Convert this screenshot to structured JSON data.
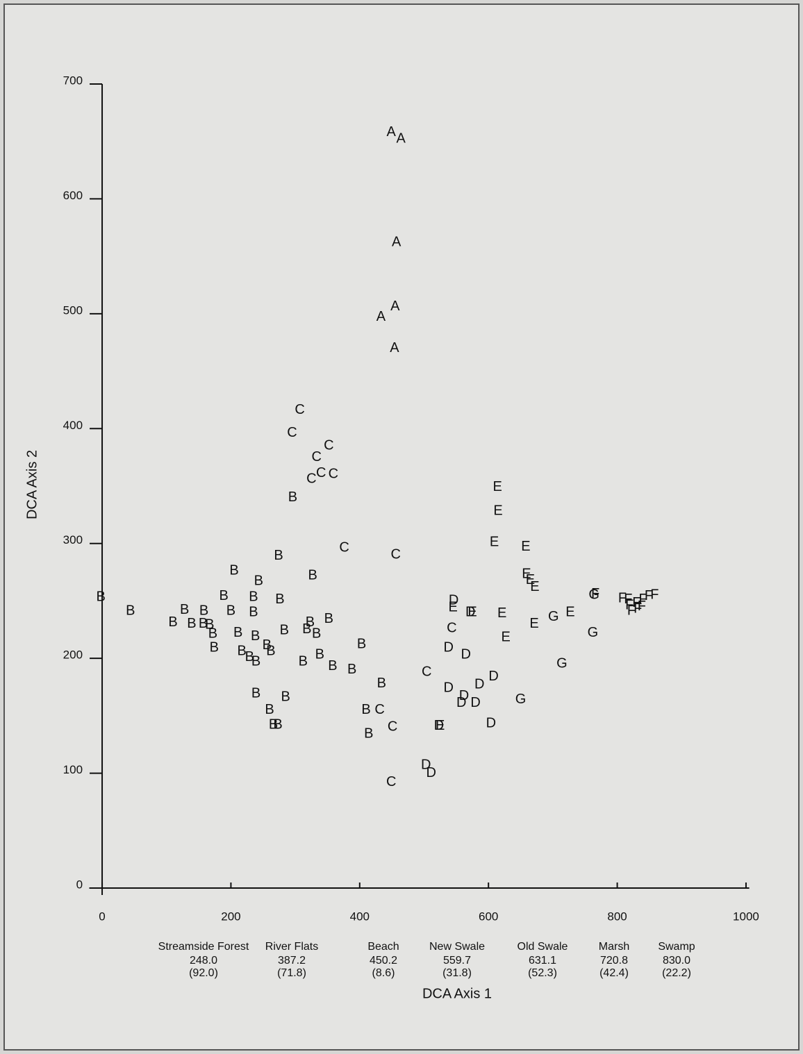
{
  "chart_data": {
    "type": "scatter",
    "x_label": "DCA Axis 1",
    "y_label": "DCA Axis 2",
    "xlim": [
      -20,
      1005
    ],
    "ylim": [
      0,
      700
    ],
    "xticks": [
      0,
      200,
      400,
      600,
      800,
      1000
    ],
    "yticks": [
      0,
      100,
      200,
      300,
      400,
      500,
      600,
      700
    ],
    "series": [
      {
        "name": "A",
        "color": "#111111",
        "x": [
          449,
          464,
          457,
          455,
          433,
          454
        ],
        "values": [
          658,
          652,
          562,
          506,
          497,
          470
        ]
      },
      {
        "name": "B",
        "color": "#111111",
        "x": [
          -2,
          44,
          296,
          274,
          205,
          243,
          327,
          189,
          235,
          276,
          128,
          158,
          200,
          235,
          352,
          110,
          139,
          157,
          167,
          323,
          318,
          333,
          283,
          211,
          238,
          172,
          256,
          174,
          217,
          262,
          229,
          239,
          312,
          338,
          403,
          358,
          388,
          434,
          239,
          285,
          260,
          410,
          266,
          273,
          414
        ],
        "values": [
          253,
          241,
          340,
          289,
          276,
          267,
          272,
          254,
          253,
          251,
          242,
          241,
          241,
          240,
          234,
          231,
          230,
          230,
          229,
          231,
          225,
          221,
          224,
          222,
          219,
          221,
          211,
          209,
          206,
          206,
          201,
          197,
          197,
          203,
          212,
          193,
          190,
          178,
          169,
          166,
          155,
          155,
          142,
          142,
          134
        ]
      },
      {
        "name": "C",
        "color": "#111111",
        "x": [
          307,
          295,
          352,
          333,
          340,
          359,
          325,
          376,
          456,
          543,
          504,
          431,
          451,
          449
        ],
        "values": [
          416,
          396,
          385,
          375,
          361,
          360,
          356,
          296,
          290,
          226,
          188,
          155,
          140,
          92
        ]
      },
      {
        "name": "D",
        "color": "#111111",
        "x": [
          546,
          572,
          538,
          565,
          608,
          586,
          538,
          562,
          558,
          580,
          604,
          523,
          503,
          511
        ],
        "values": [
          250,
          240,
          209,
          203,
          184,
          177,
          174,
          167,
          161,
          161,
          143,
          141,
          107,
          100
        ]
      },
      {
        "name": "E",
        "color": "#111111",
        "x": [
          614,
          615,
          609,
          658,
          659,
          665,
          672,
          545,
          575,
          621,
          727,
          671,
          627,
          525
        ],
        "values": [
          349,
          328,
          301,
          297,
          273,
          268,
          262,
          244,
          240,
          239,
          240,
          230,
          218,
          141
        ]
      },
      {
        "name": "F",
        "color": "#111111",
        "x": [
          766,
          808,
          817,
          830,
          840,
          849,
          858,
          822,
          832,
          838,
          819
        ],
        "values": [
          256,
          252,
          251,
          248,
          251,
          254,
          255,
          241,
          243,
          245,
          246
        ]
      },
      {
        "name": "G",
        "color": "#111111",
        "x": [
          701,
          764,
          762,
          714,
          650
        ],
        "values": [
          236,
          255,
          222,
          195,
          164
        ]
      }
    ],
    "communities": [
      {
        "name": "Streamside Forest",
        "score": "248.0",
        "sd": "(92.0)"
      },
      {
        "name": "River Flats",
        "score": "387.2",
        "sd": "(71.8)"
      },
      {
        "name": "Beach",
        "score": "450.2",
        "sd": "(8.6)"
      },
      {
        "name": "New Swale",
        "score": "559.7",
        "sd": "(31.8)"
      },
      {
        "name": "Old Swale",
        "score": "631.1",
        "sd": "(52.3)"
      },
      {
        "name": "Marsh",
        "score": "720.8",
        "sd": "(42.4)"
      },
      {
        "name": "Swamp",
        "score": "830.0",
        "sd": "(22.2)"
      }
    ]
  }
}
